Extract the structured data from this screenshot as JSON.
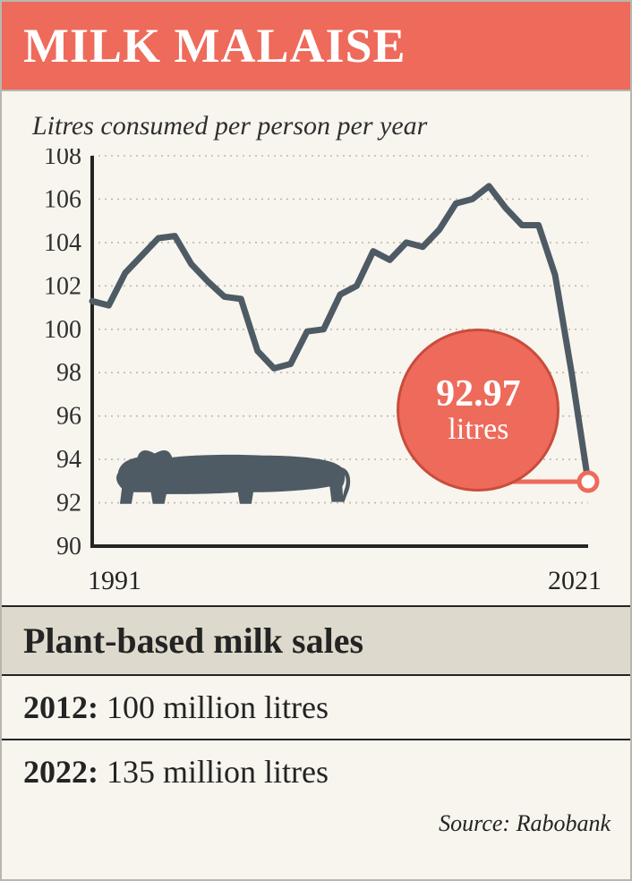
{
  "header": {
    "title": "MILK MALAISE"
  },
  "chart": {
    "type": "line",
    "subtitle": "Litres consumed per person per year",
    "x_start": 1991,
    "x_end": 2021,
    "ylim": [
      90,
      108
    ],
    "ytick_step": 2,
    "ytick_labels": [
      "90",
      "92",
      "94",
      "96",
      "98",
      "100",
      "102",
      "104",
      "106",
      "108"
    ],
    "x_labels": [
      "1991",
      "2021"
    ],
    "line_color": "#4e5b65",
    "line_width": 7,
    "grid_color": "#bdb9ac",
    "axis_color": "#242424",
    "background_color": "#f8f5ee",
    "tick_font_size": 28,
    "subtitle_font_size": 30,
    "series": [
      {
        "x": 1991,
        "y": 101.3
      },
      {
        "x": 1992,
        "y": 101.1
      },
      {
        "x": 1993,
        "y": 102.6
      },
      {
        "x": 1994,
        "y": 103.4
      },
      {
        "x": 1995,
        "y": 104.2
      },
      {
        "x": 1996,
        "y": 104.3
      },
      {
        "x": 1997,
        "y": 103.0
      },
      {
        "x": 1998,
        "y": 102.2
      },
      {
        "x": 1999,
        "y": 101.5
      },
      {
        "x": 2000,
        "y": 101.4
      },
      {
        "x": 2001,
        "y": 99.0
      },
      {
        "x": 2002,
        "y": 98.2
      },
      {
        "x": 2003,
        "y": 98.4
      },
      {
        "x": 2004,
        "y": 99.9
      },
      {
        "x": 2005,
        "y": 100.0
      },
      {
        "x": 2006,
        "y": 101.6
      },
      {
        "x": 2007,
        "y": 102.0
      },
      {
        "x": 2008,
        "y": 103.6
      },
      {
        "x": 2009,
        "y": 103.2
      },
      {
        "x": 2010,
        "y": 104.0
      },
      {
        "x": 2011,
        "y": 103.8
      },
      {
        "x": 2012,
        "y": 104.6
      },
      {
        "x": 2013,
        "y": 105.8
      },
      {
        "x": 2014,
        "y": 106.0
      },
      {
        "x": 2015,
        "y": 106.6
      },
      {
        "x": 2016,
        "y": 105.6
      },
      {
        "x": 2017,
        "y": 104.8
      },
      {
        "x": 2018,
        "y": 104.8
      },
      {
        "x": 2019,
        "y": 102.5
      },
      {
        "x": 2020,
        "y": 98.0
      },
      {
        "x": 2021,
        "y": 92.97
      }
    ],
    "callout": {
      "value": "92.97",
      "unit": "litres",
      "circle_fill": "#ee6a5a",
      "circle_stroke": "#c94c3c",
      "text_color": "#ffffff",
      "marker_fill": "#ffffff",
      "marker_stroke": "#ee6a5a",
      "marker_radius": 10
    },
    "cow_color": "#4e5b65"
  },
  "plant": {
    "heading": "Plant-based milk sales",
    "rows": [
      {
        "year": "2012:",
        "value": "100 million litres"
      },
      {
        "year": "2022:",
        "value": "135 million litres"
      }
    ]
  },
  "source": {
    "label": "Source: Rabobank"
  },
  "palette": {
    "accent": "#ee6a5a",
    "line": "#4e5b65",
    "bg": "#f8f5ee",
    "panel": "#ddd9cc",
    "ink": "#242424"
  }
}
